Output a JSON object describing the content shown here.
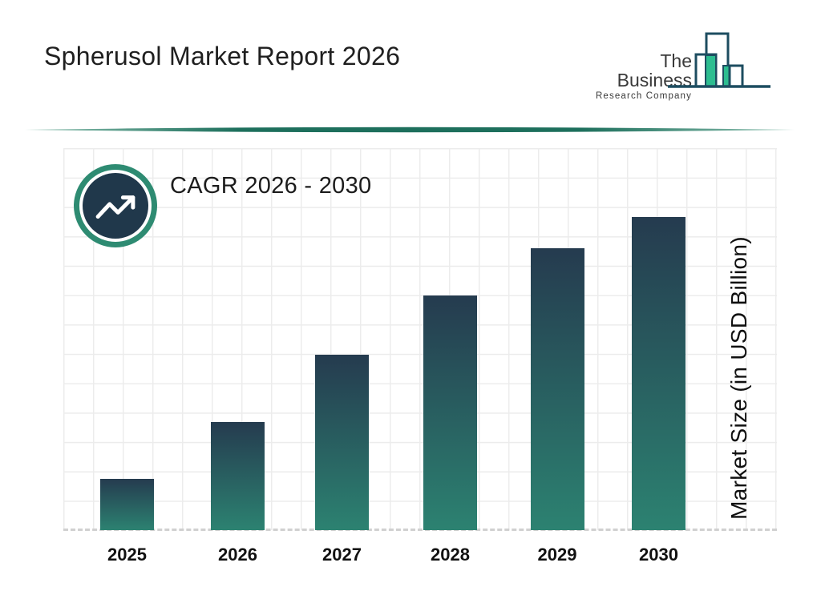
{
  "page": {
    "title": "Spherusol Market Report 2026"
  },
  "logo": {
    "line1": "The Business",
    "line2": "Research Company"
  },
  "cagr": {
    "label": "CAGR 2026 - 2030"
  },
  "chart_data": {
    "type": "bar",
    "title": "Spherusol Market Report 2026",
    "categories": [
      "2025",
      "2026",
      "2027",
      "2028",
      "2029",
      "2030"
    ],
    "values": [
      16.4,
      34.5,
      56.0,
      74.9,
      90.0,
      100
    ],
    "value_scale": "relative bar height, 2030 = 100 (chart shows no numeric y-axis tick labels)",
    "xlabel": "",
    "ylabel": "Market Size (in USD Billion)",
    "y_axis_ticks": [],
    "grid": true,
    "legend": false,
    "annotation": "CAGR 2026 - 2030"
  },
  "colors": {
    "bar_gradient_top": "#253b4f",
    "bar_gradient_bottom": "#2c8271",
    "badge_ring_green": "#2e8b72",
    "badge_core_navy": "#20384b",
    "divider_teal": "#1d6f5c",
    "divider_edge": "#8fc2b2",
    "logo_green": "#2dbd90",
    "logo_outline": "#1d4d60",
    "grid_line": "#ececec",
    "text_dark": "#1f1f1f"
  }
}
